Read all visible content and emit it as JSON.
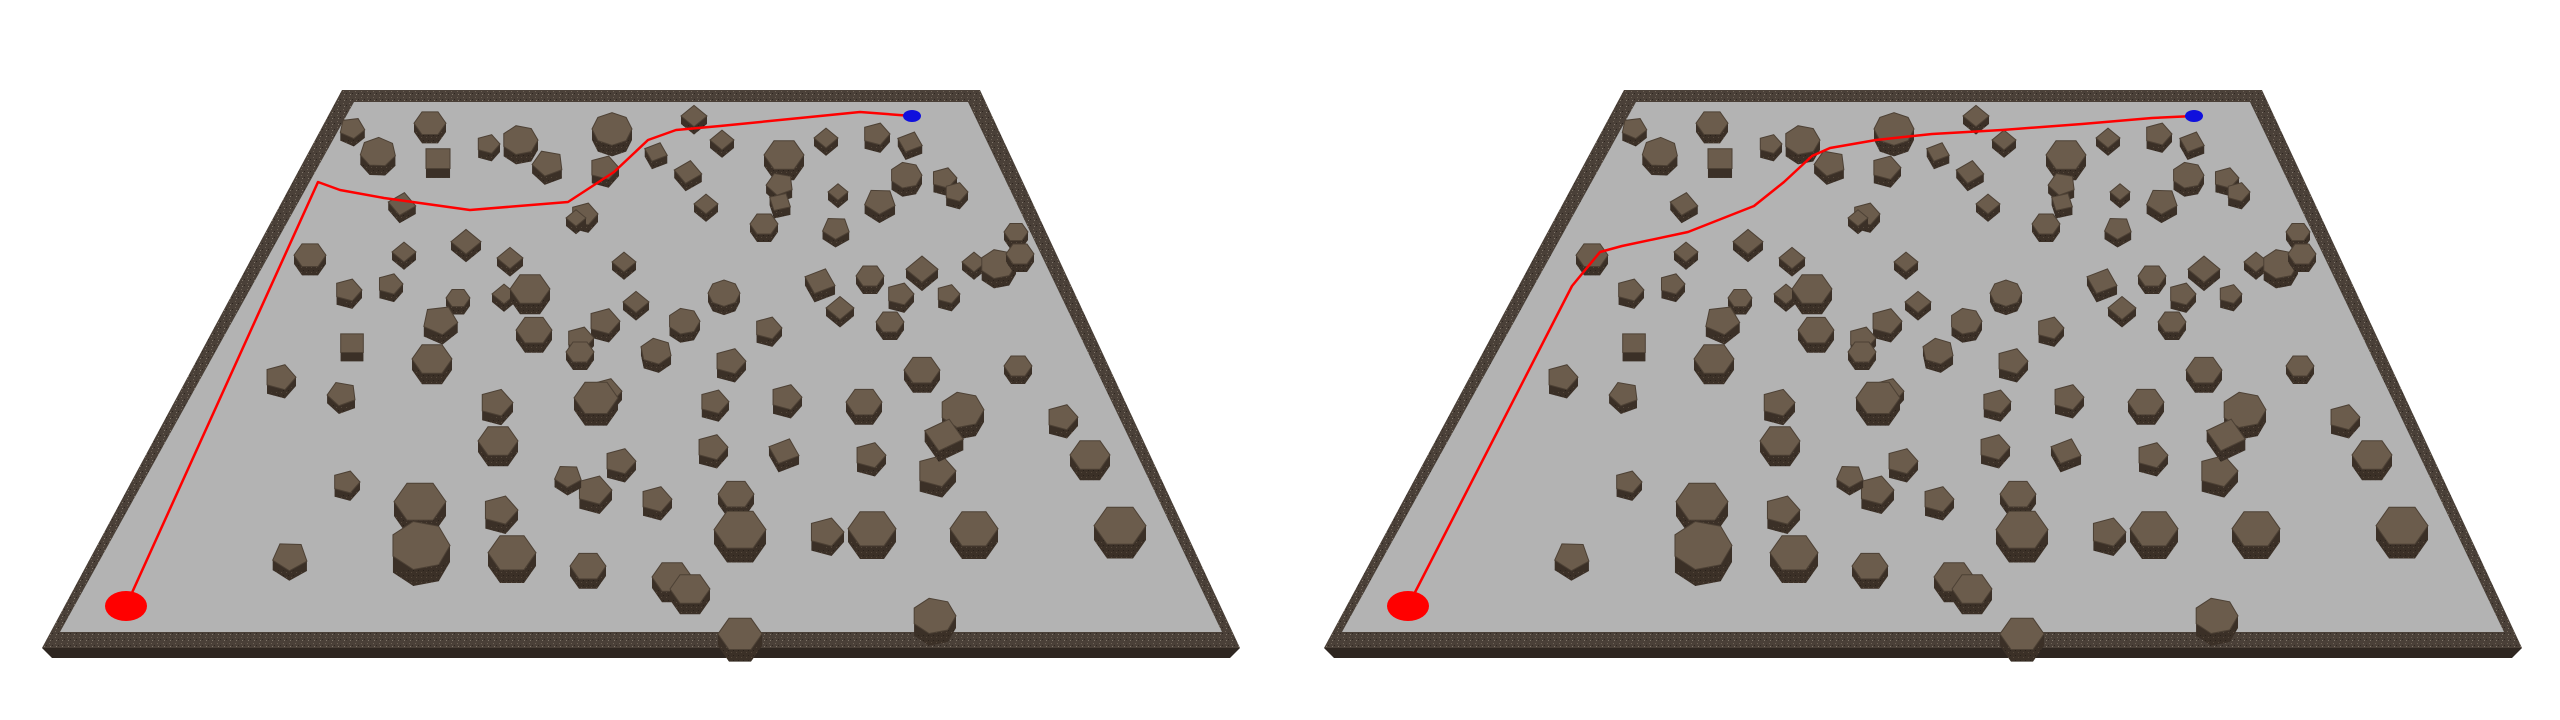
{
  "scenes": [
    {
      "id": "left",
      "colors": {
        "path": "#ff0000",
        "start": "#ff0000",
        "goal": "#1010dd"
      }
    },
    {
      "id": "right",
      "colors": {
        "path": "#ff0000",
        "start": "#ff0000",
        "goal": "#1010dd"
      }
    }
  ],
  "theme": {
    "floor": "#b3b3b3",
    "wall": "#4a4038",
    "wall_top": "#5a4f45",
    "rock_top": "#6b5c4c",
    "rock_side": "#3b3027"
  }
}
